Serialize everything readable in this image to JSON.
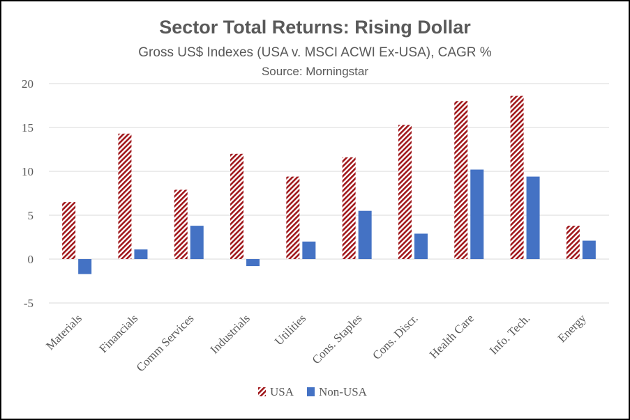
{
  "chart_data": {
    "type": "bar",
    "title": "Sector Total Returns:  Rising Dollar",
    "subtitle": "Gross US$ Indexes (USA v. MSCI ACWI Ex-USA), CAGR %",
    "source": "Source:  Morningstar",
    "categories": [
      "Materials",
      "Financials",
      "Comm Services",
      "Industrials",
      "Utilities",
      "Cons. Staples",
      "Cons. Discr.",
      "Health Care",
      "Info. Tech.",
      "Energy"
    ],
    "series": [
      {
        "name": "USA",
        "values": [
          6.5,
          14.3,
          7.9,
          12.0,
          9.4,
          11.6,
          15.3,
          18.0,
          18.6,
          3.8
        ],
        "color": "#a0171b",
        "pattern": "diagonal-hatch"
      },
      {
        "name": "Non-USA",
        "values": [
          -1.7,
          1.1,
          3.8,
          -0.8,
          2.0,
          5.5,
          2.9,
          10.2,
          9.4,
          2.1
        ],
        "color": "#4472c4",
        "pattern": "solid"
      }
    ],
    "yticks": [
      "20",
      "15",
      "10",
      "5",
      "0",
      "-5"
    ],
    "ylim": [
      -5,
      20
    ],
    "grid": true,
    "legend_position": "bottom"
  }
}
